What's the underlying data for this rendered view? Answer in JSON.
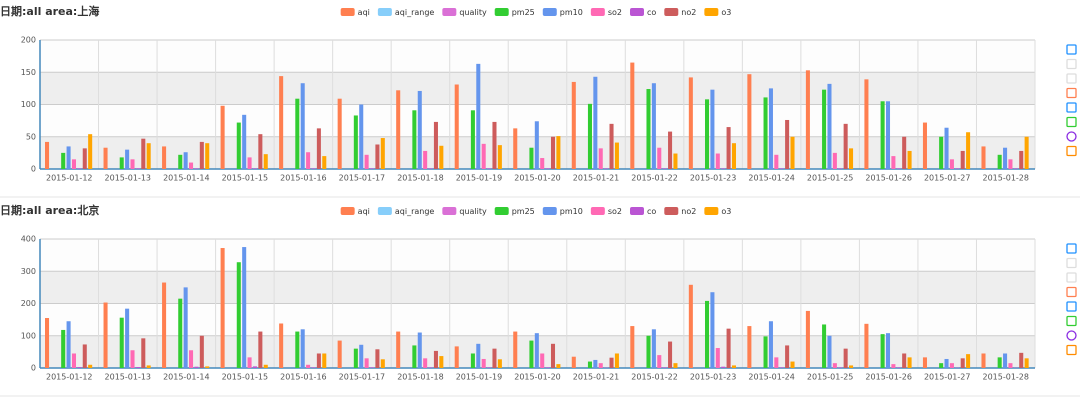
{
  "chart_data": [
    {
      "type": "bar",
      "title": "日期:all area:上海",
      "categories": [
        "2015-01-12",
        "2015-01-13",
        "2015-01-14",
        "2015-01-15",
        "2015-01-16",
        "2015-01-17",
        "2015-01-18",
        "2015-01-19",
        "2015-01-20",
        "2015-01-21",
        "2015-01-22",
        "2015-01-23",
        "2015-01-24",
        "2015-01-25",
        "2015-01-26",
        "2015-01-27",
        "2015-01-28"
      ],
      "series": [
        {
          "name": "aqi",
          "color": "#ff7f50",
          "values": [
            42,
            33,
            35,
            98,
            144,
            109,
            122,
            131,
            63,
            135,
            165,
            142,
            147,
            153,
            139,
            72,
            35
          ]
        },
        {
          "name": "aqi_range",
          "color": "#87cefa",
          "values": [
            null,
            null,
            null,
            null,
            null,
            null,
            null,
            null,
            null,
            null,
            null,
            null,
            null,
            null,
            null,
            null,
            null
          ]
        },
        {
          "name": "quality",
          "color": "#da70d6",
          "values": [
            null,
            null,
            null,
            null,
            null,
            null,
            null,
            null,
            null,
            null,
            null,
            null,
            null,
            null,
            null,
            null,
            null
          ]
        },
        {
          "name": "pm25",
          "color": "#32cd32",
          "values": [
            25,
            18,
            22,
            72,
            109,
            83,
            91,
            91,
            33,
            101,
            124,
            108,
            111,
            123,
            105,
            50,
            22
          ]
        },
        {
          "name": "pm10",
          "color": "#6495ed",
          "values": [
            35,
            30,
            26,
            84,
            133,
            100,
            121,
            163,
            74,
            143,
            133,
            123,
            125,
            132,
            105,
            64,
            33
          ]
        },
        {
          "name": "so2",
          "color": "#ff69b4",
          "values": [
            15,
            15,
            10,
            18,
            26,
            22,
            28,
            39,
            17,
            32,
            33,
            24,
            22,
            25,
            20,
            15,
            15
          ]
        },
        {
          "name": "co",
          "color": "#ba55d3",
          "values": [
            1,
            1,
            1,
            1,
            1,
            1,
            1,
            1,
            1,
            1,
            1,
            1,
            1,
            1,
            1,
            1,
            1
          ]
        },
        {
          "name": "no2",
          "color": "#cd5c5c",
          "values": [
            32,
            47,
            42,
            54,
            63,
            38,
            73,
            73,
            50,
            70,
            58,
            65,
            76,
            70,
            50,
            28,
            28
          ]
        },
        {
          "name": "o3",
          "color": "#ffa500",
          "values": [
            54,
            40,
            40,
            23,
            20,
            48,
            36,
            37,
            51,
            41,
            24,
            40,
            50,
            32,
            28,
            57,
            50
          ]
        }
      ],
      "ylim": [
        0,
        200
      ],
      "yticks": [
        0,
        50,
        100,
        150,
        200
      ],
      "grid": true
    },
    {
      "type": "bar",
      "title": "日期:all area:北京",
      "categories": [
        "2015-01-12",
        "2015-01-13",
        "2015-01-14",
        "2015-01-15",
        "2015-01-16",
        "2015-01-17",
        "2015-01-18",
        "2015-01-19",
        "2015-01-20",
        "2015-01-21",
        "2015-01-22",
        "2015-01-23",
        "2015-01-24",
        "2015-01-25",
        "2015-01-26",
        "2015-01-27",
        "2015-01-28"
      ],
      "series": [
        {
          "name": "aqi",
          "color": "#ff7f50",
          "values": [
            155,
            203,
            265,
            372,
            138,
            85,
            113,
            67,
            113,
            35,
            130,
            258,
            130,
            177,
            137,
            33,
            45
          ]
        },
        {
          "name": "aqi_range",
          "color": "#87cefa",
          "values": [
            null,
            null,
            null,
            null,
            null,
            null,
            null,
            null,
            null,
            null,
            null,
            null,
            null,
            null,
            null,
            null,
            null
          ]
        },
        {
          "name": "quality",
          "color": "#da70d6",
          "values": [
            null,
            null,
            null,
            null,
            null,
            null,
            null,
            null,
            null,
            null,
            null,
            null,
            null,
            null,
            null,
            null,
            null
          ]
        },
        {
          "name": "pm25",
          "color": "#32cd32",
          "values": [
            118,
            156,
            215,
            328,
            113,
            60,
            70,
            45,
            85,
            20,
            100,
            208,
            98,
            135,
            105,
            15,
            33
          ]
        },
        {
          "name": "pm10",
          "color": "#6495ed",
          "values": [
            145,
            184,
            250,
            375,
            120,
            72,
            110,
            75,
            108,
            25,
            120,
            235,
            145,
            100,
            108,
            28,
            45
          ]
        },
        {
          "name": "so2",
          "color": "#ff69b4",
          "values": [
            45,
            55,
            55,
            33,
            10,
            30,
            30,
            28,
            45,
            15,
            40,
            62,
            33,
            15,
            12,
            15,
            15
          ]
        },
        {
          "name": "co",
          "color": "#ba55d3",
          "values": [
            3,
            3,
            4,
            5,
            2,
            2,
            2,
            2,
            2,
            1,
            2,
            4,
            2,
            2,
            2,
            1,
            1
          ]
        },
        {
          "name": "no2",
          "color": "#cd5c5c",
          "values": [
            73,
            92,
            100,
            113,
            45,
            58,
            53,
            60,
            75,
            32,
            82,
            122,
            70,
            60,
            45,
            30,
            47
          ]
        },
        {
          "name": "o3",
          "color": "#ffa500",
          "values": [
            10,
            8,
            5,
            10,
            45,
            27,
            37,
            27,
            12,
            45,
            15,
            8,
            20,
            8,
            33,
            43,
            30
          ]
        }
      ],
      "ylim": [
        0,
        400
      ],
      "yticks": [
        0,
        100,
        200,
        300,
        400
      ],
      "grid": true
    }
  ]
}
